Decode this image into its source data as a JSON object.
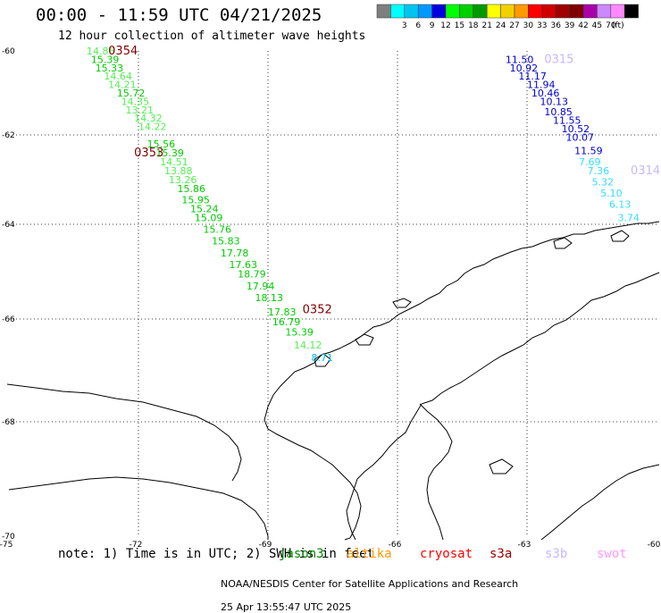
{
  "header": {
    "title": "00:00 - 11:59 UTC 04/21/2025",
    "subtitle": "12 hour collection of altimeter wave heights"
  },
  "legend": {
    "unit_label": "(ft)",
    "bins": [
      {
        "label": "",
        "color": "#7f7f7f"
      },
      {
        "label": "3",
        "color": "#00ffff"
      },
      {
        "label": "6",
        "color": "#00c4f0"
      },
      {
        "label": "9",
        "color": "#0099ff"
      },
      {
        "label": "12",
        "color": "#0000e0"
      },
      {
        "label": "15",
        "color": "#00ff00"
      },
      {
        "label": "18",
        "color": "#00d000"
      },
      {
        "label": "21",
        "color": "#009900"
      },
      {
        "label": "24",
        "color": "#ffff00"
      },
      {
        "label": "27",
        "color": "#f5d000"
      },
      {
        "label": "30",
        "color": "#ff9900"
      },
      {
        "label": "33",
        "color": "#ff0000"
      },
      {
        "label": "36",
        "color": "#d00000"
      },
      {
        "label": "39",
        "color": "#a00000"
      },
      {
        "label": "42",
        "color": "#800000"
      },
      {
        "label": "45",
        "color": "#aa00aa"
      },
      {
        "label": "70",
        "color": "#cc88ff"
      },
      {
        "label": "",
        "color": "#ff88ff"
      },
      {
        "label": "",
        "color": "#000000"
      }
    ]
  },
  "map": {
    "lon_ticks": [
      {
        "value": -75,
        "label": "-75"
      },
      {
        "value": -72,
        "label": "-72"
      },
      {
        "value": -69,
        "label": "-69"
      },
      {
        "value": -66,
        "label": "-66"
      },
      {
        "value": -63,
        "label": "-63"
      },
      {
        "value": -60,
        "label": "-60"
      }
    ],
    "lat_ticks": [
      {
        "value": -60,
        "label": "-60"
      },
      {
        "value": -62,
        "label": "-62"
      },
      {
        "value": -64,
        "label": "-64"
      },
      {
        "value": -66,
        "label": "-66"
      },
      {
        "value": -68,
        "label": "-68"
      },
      {
        "value": -70,
        "label": "-70"
      }
    ],
    "pass_labels": [
      {
        "text": "0354",
        "lon": -72.7,
        "lat": -60.0,
        "color": "#800000"
      },
      {
        "text": "0353",
        "lon": -72.1,
        "lat": -62.4,
        "color": "#800000"
      },
      {
        "text": "0352",
        "lon": -68.2,
        "lat": -65.8,
        "color": "#800000"
      },
      {
        "text": "0315",
        "lon": -62.6,
        "lat": -60.2,
        "color": "#c8b8ff"
      },
      {
        "text": "0314",
        "lon": -60.6,
        "lat": -62.8,
        "color": "#c8b8ff"
      }
    ]
  },
  "chart_data": {
    "type": "scatter",
    "title": "00:00 - 11:59 UTC 04/21/2025",
    "subtitle": "12 hour collection of altimeter wave heights",
    "xlim": [
      -75,
      -60
    ],
    "ylim": [
      -70,
      -60
    ],
    "series": [
      {
        "name": "0354",
        "points": [
          {
            "lon": -73.2,
            "lat": -60.0,
            "v": "14.86",
            "c": "#55ee55"
          },
          {
            "lon": -73.1,
            "lat": -60.2,
            "v": "15.39",
            "c": "#00cc00"
          },
          {
            "lon": -73.0,
            "lat": -60.4,
            "v": "15.33",
            "c": "#00cc00"
          },
          {
            "lon": -72.8,
            "lat": -60.6,
            "v": "14.64",
            "c": "#55ee55"
          },
          {
            "lon": -72.7,
            "lat": -60.8,
            "v": "14.21",
            "c": "#55ee55"
          },
          {
            "lon": -72.5,
            "lat": -61.0,
            "v": "15.72",
            "c": "#00cc00"
          },
          {
            "lon": -72.4,
            "lat": -61.2,
            "v": "14.35",
            "c": "#55ee55"
          },
          {
            "lon": -72.3,
            "lat": -61.4,
            "v": "13.21",
            "c": "#55ee55"
          },
          {
            "lon": -72.1,
            "lat": -61.6,
            "v": "14.32",
            "c": "#55ee55"
          },
          {
            "lon": -72.0,
            "lat": -61.8,
            "v": "14.22",
            "c": "#55ee55"
          }
        ]
      },
      {
        "name": "0353",
        "points": [
          {
            "lon": -71.8,
            "lat": -62.2,
            "v": "15.56",
            "c": "#00cc00"
          },
          {
            "lon": -71.6,
            "lat": -62.4,
            "v": "15.39",
            "c": "#00cc00"
          },
          {
            "lon": -71.5,
            "lat": -62.6,
            "v": "14.51",
            "c": "#55ee55"
          },
          {
            "lon": -71.4,
            "lat": -62.8,
            "v": "13.88",
            "c": "#55ee55"
          },
          {
            "lon": -71.3,
            "lat": -63.0,
            "v": "13.26",
            "c": "#55ee55"
          },
          {
            "lon": -71.1,
            "lat": -63.2,
            "v": "15.86",
            "c": "#00cc00"
          },
          {
            "lon": -71.0,
            "lat": -63.45,
            "v": "15.95",
            "c": "#00cc00"
          },
          {
            "lon": -70.8,
            "lat": -63.65,
            "v": "15.24",
            "c": "#00cc00"
          },
          {
            "lon": -70.7,
            "lat": -63.85,
            "v": "15.09",
            "c": "#00cc00"
          },
          {
            "lon": -70.5,
            "lat": -64.1,
            "v": "15.76",
            "c": "#00cc00"
          },
          {
            "lon": -70.3,
            "lat": -64.35,
            "v": "15.83",
            "c": "#00cc00"
          },
          {
            "lon": -70.1,
            "lat": -64.6,
            "v": "17.78",
            "c": "#00cc00"
          },
          {
            "lon": -69.9,
            "lat": -64.85,
            "v": "17.63",
            "c": "#00cc00"
          },
          {
            "lon": -69.7,
            "lat": -65.05,
            "v": "18.79",
            "c": "#00cc00"
          },
          {
            "lon": -69.5,
            "lat": -65.3,
            "v": "17.94",
            "c": "#00cc00"
          },
          {
            "lon": -69.3,
            "lat": -65.55,
            "v": "18.13",
            "c": "#00cc00"
          }
        ]
      },
      {
        "name": "0352",
        "points": [
          {
            "lon": -69.0,
            "lat": -65.85,
            "v": "17.83",
            "c": "#00cc00"
          },
          {
            "lon": -68.9,
            "lat": -66.05,
            "v": "16.79",
            "c": "#00cc00"
          },
          {
            "lon": -68.6,
            "lat": -66.25,
            "v": "15.39",
            "c": "#00cc00"
          },
          {
            "lon": -68.4,
            "lat": -66.5,
            "v": "14.12",
            "c": "#55ee55"
          },
          {
            "lon": -68.0,
            "lat": -66.75,
            "v": "8.71",
            "c": "#00bbee"
          }
        ]
      },
      {
        "name": "0315",
        "points": [
          {
            "lon": -63.5,
            "lat": -60.2,
            "v": "11.50",
            "c": "#0000cc"
          },
          {
            "lon": -63.4,
            "lat": -60.4,
            "v": "10.92",
            "c": "#0000cc"
          },
          {
            "lon": -63.2,
            "lat": -60.6,
            "v": "11.17",
            "c": "#0000cc"
          },
          {
            "lon": -63.0,
            "lat": -60.8,
            "v": "11.94",
            "c": "#0000cc"
          },
          {
            "lon": -62.9,
            "lat": -61.0,
            "v": "10.46",
            "c": "#0000cc"
          },
          {
            "lon": -62.7,
            "lat": -61.2,
            "v": "10.13",
            "c": "#0000cc"
          },
          {
            "lon": -62.6,
            "lat": -61.45,
            "v": "10.85",
            "c": "#0000cc"
          },
          {
            "lon": -62.4,
            "lat": -61.65,
            "v": "11.55",
            "c": "#0000cc"
          },
          {
            "lon": -62.2,
            "lat": -61.85,
            "v": "10.52",
            "c": "#0000cc"
          },
          {
            "lon": -62.1,
            "lat": -62.05,
            "v": "10.07",
            "c": "#0000cc"
          },
          {
            "lon": -61.9,
            "lat": -62.35,
            "v": "11.59",
            "c": "#0000cc"
          }
        ]
      },
      {
        "name": "0314",
        "points": [
          {
            "lon": -61.8,
            "lat": -62.6,
            "v": "7.69",
            "c": "#33ddff"
          },
          {
            "lon": -61.6,
            "lat": -62.8,
            "v": "7.36",
            "c": "#33ddff"
          },
          {
            "lon": -61.5,
            "lat": -63.05,
            "v": "5.32",
            "c": "#33ddff"
          },
          {
            "lon": -61.3,
            "lat": -63.3,
            "v": "5.10",
            "c": "#33ddff"
          },
          {
            "lon": -61.1,
            "lat": -63.55,
            "v": "6.13",
            "c": "#33ddff"
          },
          {
            "lon": -60.9,
            "lat": -63.85,
            "v": "3.74",
            "c": "#33ddff"
          }
        ]
      }
    ]
  },
  "note": {
    "prefix": "note: 1) Time is in UTC; 2) SWH is in feet",
    "missions": [
      {
        "text": "jason3",
        "color": "#008800"
      },
      {
        "text": "altika",
        "color": "#ff9900"
      },
      {
        "text": "cryosat",
        "color": "#ff0000"
      },
      {
        "text": "s3a",
        "color": "#990000"
      },
      {
        "text": "s3b",
        "color": "#c8b8ff"
      },
      {
        "text": "swot",
        "color": "#ff99ff"
      }
    ]
  },
  "footer": {
    "credit": "NOAA/NESDIS Center for Satellite Applications and Research",
    "timestamp": "25 Apr 13:55:47 UTC 2025"
  }
}
